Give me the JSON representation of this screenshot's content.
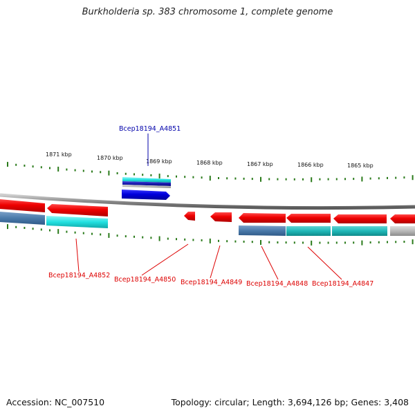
{
  "title": "Burkholderia sp. 383 chromosome 1, complete genome",
  "footer": {
    "accession": "Accession: NC_007510",
    "summary": "Topology: circular; Length: 3,694,126 bp; Genes: 3,408"
  },
  "colors": {
    "forward_gene": "#0000dd",
    "reverse_gene": "#ee0000",
    "forward_label": "#0000aa",
    "reverse_label": "#dd0000",
    "tick": "#2a7a1a",
    "backbone": "#8a8a8a",
    "annotation_cyan": "#22e0e0",
    "annotation_steel": "#4a7aaa",
    "annotation_grey": "#b8b8b8"
  },
  "scale": {
    "unit": "kbp",
    "labels": [
      "1871 kbp",
      "1870 kbp",
      "1869 kbp",
      "1868 kbp",
      "1867 kbp",
      "1866 kbp",
      "1865 kbp"
    ]
  },
  "genes": [
    {
      "id": "Bcep18194_A4851",
      "strand": "forward"
    },
    {
      "id": "Bcep18194_A4852",
      "strand": "reverse"
    },
    {
      "id": "Bcep18194_A4850",
      "strand": "reverse"
    },
    {
      "id": "Bcep18194_A4849",
      "strand": "reverse"
    },
    {
      "id": "Bcep18194_A4848",
      "strand": "reverse"
    },
    {
      "id": "Bcep18194_A4847",
      "strand": "reverse"
    }
  ]
}
